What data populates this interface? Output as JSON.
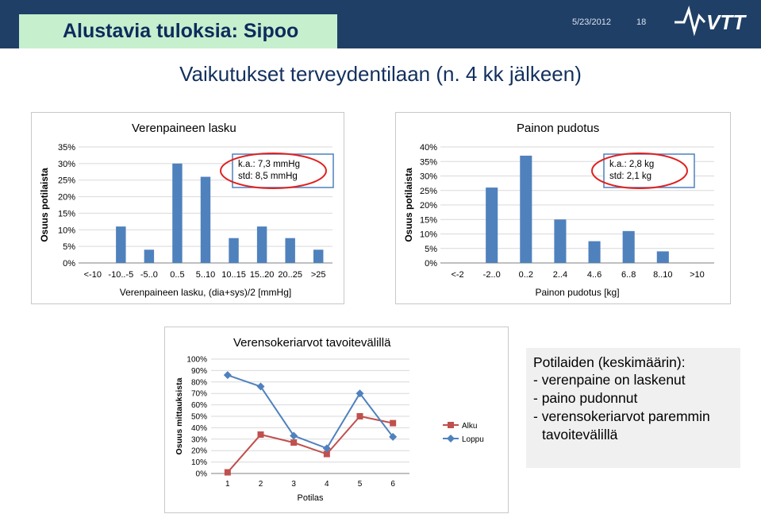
{
  "header": {
    "title": "Alustavia tuloksia: Sipoo",
    "date": "5/23/2012",
    "page": "18",
    "logo_icon": "vtt-logo"
  },
  "subtitle": "Vaikutukset terveydentilaan (n. 4 kk jälkeen)",
  "info": {
    "heading": "Potilaiden (keskimäärin):",
    "lines": [
      "- verenpaine on laskenut",
      "- paino pudonnut",
      "- verensokeriarvot paremmin",
      "tavoitevälillä"
    ]
  },
  "colors": {
    "bar": "#4f81bd",
    "alku": "#c0504d",
    "loppu": "#4f81bd",
    "accent": "#1f3f66"
  },
  "chart_data": [
    {
      "type": "bar",
      "title": "Verenpaineen lasku",
      "xlabel": "Verenpaineen lasku, (dia+sys)/2  [mmHg]",
      "ylabel": "Osuus potilaista",
      "categories": [
        "<-10",
        "-10..-5",
        "-5..0",
        "0..5",
        "5..10",
        "10..15",
        "15..20",
        "20..25",
        ">25"
      ],
      "values": [
        0,
        11,
        4,
        30,
        26,
        7.5,
        11,
        7.5,
        4
      ],
      "ylim": [
        0,
        35
      ],
      "yticks": [
        "0%",
        "5%",
        "10%",
        "15%",
        "20%",
        "25%",
        "30%",
        "35%"
      ],
      "annotation": [
        "k.a.: 7,3 mmHg",
        "std: 8,5 mmHg"
      ],
      "grid": true
    },
    {
      "type": "bar",
      "title": "Painon pudotus",
      "xlabel": "Painon pudotus   [kg]",
      "ylabel": "Osuus potilaista",
      "categories": [
        "<-2",
        "-2..0",
        "0..2",
        "2..4",
        "4..6",
        "6..8",
        "8..10",
        ">10"
      ],
      "values": [
        0,
        26,
        37,
        15,
        7.5,
        11,
        4,
        0
      ],
      "ylim": [
        0,
        40
      ],
      "yticks": [
        "0%",
        "5%",
        "10%",
        "15%",
        "20%",
        "25%",
        "30%",
        "35%",
        "40%"
      ],
      "annotation": [
        "k.a.: 2,8 kg",
        "std: 2,1 kg"
      ],
      "grid": true
    },
    {
      "type": "line",
      "title": "Verensokeriarvot  tavoitevälillä",
      "xlabel": "Potilas",
      "ylabel": "Osuus mittauksista",
      "x": [
        "1",
        "2",
        "3",
        "4",
        "5",
        "6"
      ],
      "ylim": [
        0,
        100
      ],
      "yticks": [
        "0%",
        "10%",
        "20%",
        "30%",
        "40%",
        "50%",
        "60%",
        "70%",
        "80%",
        "90%",
        "100%"
      ],
      "series": [
        {
          "name": "Alku",
          "values": [
            1,
            34,
            27,
            17,
            50,
            44
          ]
        },
        {
          "name": "Loppu",
          "values": [
            86,
            76,
            33,
            22,
            70,
            32
          ]
        }
      ],
      "legend": "right",
      "grid": true
    }
  ]
}
